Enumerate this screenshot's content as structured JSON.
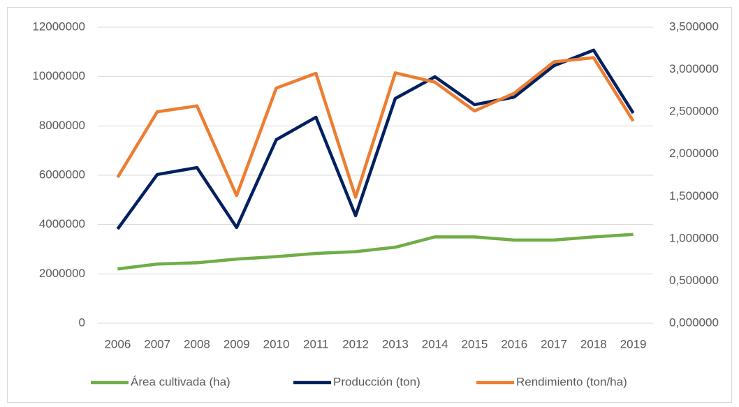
{
  "chart_data": {
    "type": "line",
    "categories": [
      "2006",
      "2007",
      "2008",
      "2009",
      "2010",
      "2011",
      "2012",
      "2013",
      "2014",
      "2015",
      "2016",
      "2017",
      "2018",
      "2019"
    ],
    "series": [
      {
        "name": "Área cultivada (ha)",
        "color": "#70ad47",
        "values": [
          2200000,
          2400000,
          2450000,
          2600000,
          2700000,
          2830000,
          2900000,
          3080000,
          3500000,
          3500000,
          3370000,
          3370000,
          3500000,
          3600000
        ]
      },
      {
        "name": "Producción (ton)",
        "color": "#002060",
        "values": [
          3820000,
          6030000,
          6310000,
          3880000,
          7440000,
          8350000,
          4360000,
          9110000,
          9990000,
          8860000,
          9170000,
          10440000,
          11070000,
          8520000
        ]
      },
      {
        "name": "Rendimiento (ton/ha)",
        "color": "#ed7d31",
        "axis": "y2",
        "values": [
          1.725,
          2.5,
          2.57,
          1.51,
          2.78,
          2.955,
          1.49,
          2.96,
          2.85,
          2.51,
          2.72,
          3.09,
          3.14,
          2.39
        ]
      }
    ],
    "ylim": [
      0,
      12000000
    ],
    "yticks": [
      0,
      2000000,
      4000000,
      6000000,
      8000000,
      10000000,
      12000000
    ],
    "y2lim": [
      0,
      3.5
    ],
    "y2ticks": [
      {
        "value": 0,
        "label": "0,000000"
      },
      {
        "value": 0.5,
        "label": "0,500000"
      },
      {
        "value": 1,
        "label": "1,000000"
      },
      {
        "value": 1.5,
        "label": "1,500000"
      },
      {
        "value": 2,
        "label": "2,000000"
      },
      {
        "value": 2.5,
        "label": "2,500000"
      },
      {
        "value": 3,
        "label": "3,000000"
      },
      {
        "value": 3.5,
        "label": "3,500000"
      }
    ],
    "grid": true,
    "legend": "bottom"
  }
}
